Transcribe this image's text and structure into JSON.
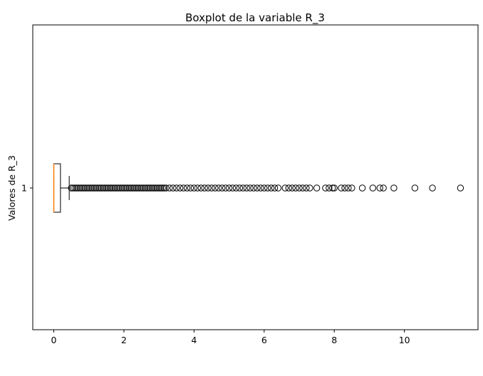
{
  "chart_data": {
    "type": "boxplot",
    "orientation": "horizontal",
    "title": "Boxplot de la variable R_3",
    "xlabel": "",
    "ylabel": "Valores de R_3",
    "xlim": [
      -0.6,
      12.1
    ],
    "x_ticks": [
      0,
      2,
      4,
      6,
      8,
      10
    ],
    "y_ticks": [
      "1"
    ],
    "grid": false,
    "colors": {
      "box": "#000000",
      "median": "#ff7f0e",
      "flier": "#000000"
    },
    "box": {
      "category": "1",
      "whisker_low": 0.0,
      "q1": 0.0,
      "median": 0.0,
      "q3": 0.19,
      "whisker_high": 0.44
    },
    "outliers": [
      0.5,
      0.55,
      0.6,
      0.65,
      0.7,
      0.75,
      0.8,
      0.85,
      0.9,
      0.95,
      1.0,
      1.05,
      1.1,
      1.15,
      1.2,
      1.25,
      1.3,
      1.35,
      1.4,
      1.45,
      1.5,
      1.55,
      1.6,
      1.65,
      1.7,
      1.75,
      1.8,
      1.85,
      1.9,
      1.95,
      2.0,
      2.05,
      2.1,
      2.15,
      2.2,
      2.25,
      2.3,
      2.35,
      2.4,
      2.45,
      2.5,
      2.55,
      2.6,
      2.65,
      2.7,
      2.75,
      2.8,
      2.85,
      2.9,
      2.95,
      3.0,
      3.05,
      3.1,
      3.15,
      3.2,
      3.3,
      3.4,
      3.5,
      3.6,
      3.7,
      3.8,
      3.9,
      4.0,
      4.1,
      4.2,
      4.3,
      4.4,
      4.5,
      4.6,
      4.7,
      4.8,
      4.9,
      5.0,
      5.1,
      5.2,
      5.3,
      5.4,
      5.5,
      5.6,
      5.7,
      5.8,
      5.9,
      6.0,
      6.1,
      6.2,
      6.3,
      6.4,
      6.6,
      6.7,
      6.8,
      6.9,
      7.0,
      7.1,
      7.2,
      7.3,
      7.5,
      7.75,
      7.85,
      7.95,
      8.0,
      8.2,
      8.3,
      8.4,
      8.5,
      8.8,
      9.1,
      9.3,
      9.4,
      9.7,
      10.3,
      10.8,
      11.6
    ]
  }
}
